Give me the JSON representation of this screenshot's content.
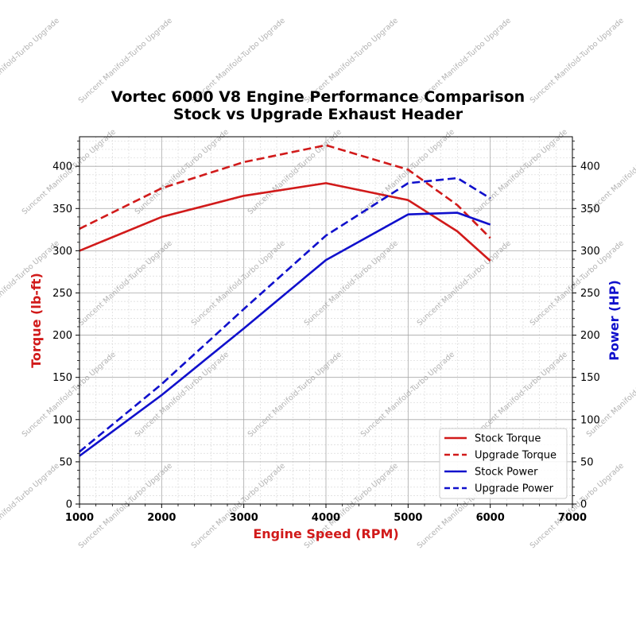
{
  "chart_data": {
    "type": "line",
    "title": "Vortec 6000 V8 Engine Performance Comparison",
    "subtitle": "Stock vs Upgrade Exhaust Header",
    "xlabel": "Engine Speed (RPM)",
    "ylabel_left": "Torque (lb-ft)",
    "ylabel_right": "Power (HP)",
    "xlim": [
      1000,
      7000
    ],
    "ylim_left": [
      0,
      435
    ],
    "ylim_right": [
      0,
      435
    ],
    "x_ticks": [
      1000,
      2000,
      3000,
      4000,
      5000,
      6000,
      7000
    ],
    "y_ticks": [
      0,
      50,
      100,
      150,
      200,
      250,
      300,
      350,
      400
    ],
    "grid": true,
    "legend_position": "lower-right",
    "watermark": "Suncent Manifold-Turbo Upgrade",
    "colors": {
      "torque": "#d11a1a",
      "power": "#1010cc",
      "grid_major": "#a8a8a8",
      "grid_minor": "#d9d9d9"
    },
    "series": [
      {
        "name": "Stock Torque",
        "axis": "left",
        "color": "#d11a1a",
        "style": "solid",
        "x": [
          1000,
          2000,
          3000,
          4000,
          5000,
          5600,
          6000
        ],
        "y": [
          300,
          340,
          365,
          380,
          360,
          323,
          288
        ]
      },
      {
        "name": "Upgrade Torque",
        "axis": "left",
        "color": "#d11a1a",
        "style": "dashed",
        "x": [
          1000,
          2000,
          3000,
          4000,
          5000,
          5600,
          6000
        ],
        "y": [
          326,
          374,
          405,
          425,
          396,
          354,
          315
        ]
      },
      {
        "name": "Stock Power",
        "axis": "right",
        "color": "#1010cc",
        "style": "solid",
        "x": [
          1000,
          2000,
          3000,
          4000,
          5000,
          5600,
          6000
        ],
        "y": [
          57,
          129,
          208,
          289,
          343,
          345,
          331
        ]
      },
      {
        "name": "Upgrade Power",
        "axis": "right",
        "color": "#1010cc",
        "style": "dashed",
        "x": [
          1000,
          2000,
          3000,
          4000,
          5000,
          5600,
          6000
        ],
        "y": [
          62,
          142,
          231,
          318,
          380,
          386,
          362
        ]
      }
    ]
  }
}
